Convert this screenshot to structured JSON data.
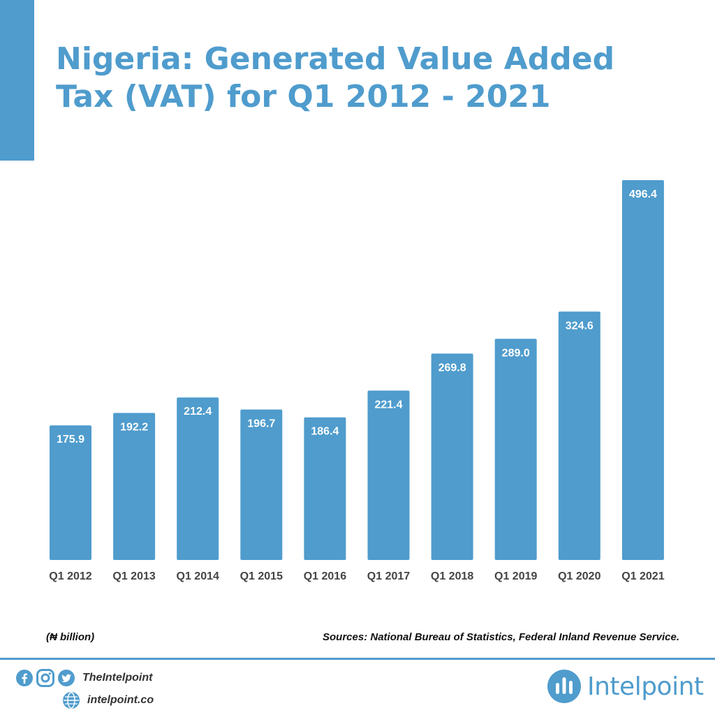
{
  "header": {
    "title_line1": "Nigeria: Generated Value Added",
    "title_line2": "Tax (VAT) for Q1 2012 - 2021"
  },
  "chart_data": {
    "type": "bar",
    "categories": [
      "Q1 2012",
      "Q1 2013",
      "Q1 2014",
      "Q1 2015",
      "Q1 2016",
      "Q1 2017",
      "Q1 2018",
      "Q1 2019",
      "Q1 2020",
      "Q1 2021"
    ],
    "values": [
      175.9,
      192.2,
      212.4,
      196.7,
      186.4,
      221.4,
      269.8,
      289.0,
      324.6,
      496.4
    ],
    "value_labels": [
      "175.9",
      "192.2",
      "212.4",
      "196.7",
      "186.4",
      "221.4",
      "269.8",
      "289.0",
      "324.6",
      "496.4"
    ],
    "ylim": [
      0,
      496.4
    ],
    "grid": false,
    "legend": "none",
    "bar_color": "#4f9ccd",
    "label_color": "#ffffff"
  },
  "footer": {
    "unit_label": "(₦ billion)",
    "sources": "Sources: National Bureau of Statistics, Federal Inland Revenue Service.",
    "social_handle": "TheIntelpoint",
    "website": "intelpoint.co",
    "social_icons": [
      "facebook-icon",
      "instagram-icon",
      "twitter-icon"
    ],
    "web_icon": "globe-icon",
    "logo_text": "Intelpoint",
    "brand_color": "#4f9ccd"
  }
}
